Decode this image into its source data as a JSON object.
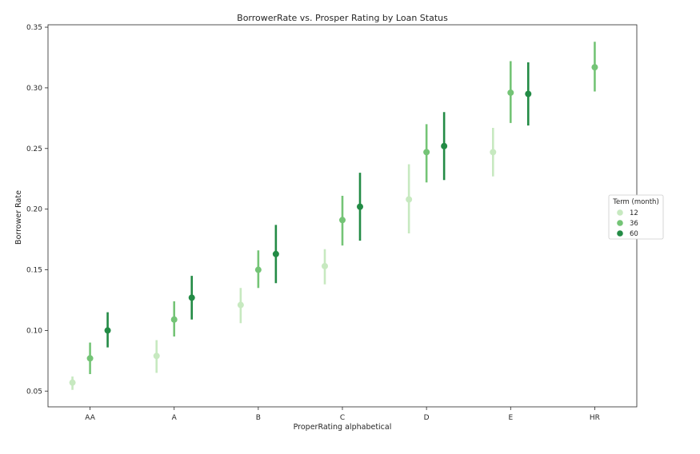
{
  "chart_data": {
    "type": "scatter",
    "title": "BorrowerRate vs. Prosper Rating by Loan Status",
    "xlabel": "ProperRating alphabetical",
    "ylabel": "Borrower Rate",
    "categories": [
      "AA",
      "A",
      "B",
      "C",
      "D",
      "E",
      "HR"
    ],
    "ylim": [
      0.037,
      0.352
    ],
    "yticks": [
      "0.05",
      "0.10",
      "0.15",
      "0.20",
      "0.25",
      "0.30",
      "0.35"
    ],
    "grid": false,
    "legend": {
      "title": "Term (month)",
      "placement": "center-right"
    },
    "series": [
      {
        "name": "12",
        "color": "#c7e9c0",
        "values": [
          0.057,
          0.079,
          0.121,
          0.153,
          0.208,
          0.247,
          null
        ],
        "ci_low": [
          0.051,
          0.065,
          0.106,
          0.138,
          0.18,
          0.227,
          null
        ],
        "ci_high": [
          0.062,
          0.092,
          0.135,
          0.167,
          0.237,
          0.267,
          null
        ]
      },
      {
        "name": "36",
        "color": "#74c476",
        "values": [
          0.077,
          0.109,
          0.15,
          0.191,
          0.247,
          0.296,
          0.317
        ],
        "ci_low": [
          0.064,
          0.095,
          0.135,
          0.17,
          0.222,
          0.271,
          0.297
        ],
        "ci_high": [
          0.09,
          0.124,
          0.166,
          0.211,
          0.27,
          0.322,
          0.338
        ]
      },
      {
        "name": "60",
        "color": "#238b45",
        "values": [
          0.1,
          0.127,
          0.163,
          0.202,
          0.252,
          0.295,
          null
        ],
        "ci_low": [
          0.086,
          0.109,
          0.139,
          0.174,
          0.224,
          0.269,
          null
        ],
        "ci_high": [
          0.115,
          0.145,
          0.187,
          0.23,
          0.28,
          0.321,
          null
        ]
      }
    ]
  }
}
